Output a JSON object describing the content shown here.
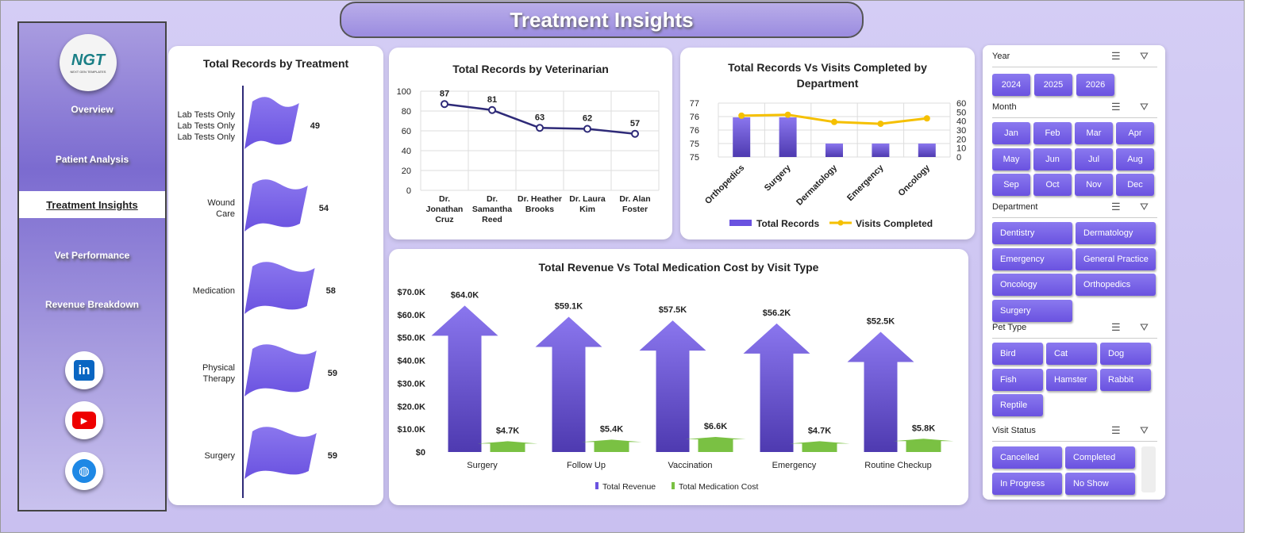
{
  "title": "Treatment Insights",
  "logo": {
    "text": "NGT",
    "subtitle": "NEXT GEN TEMPLATES"
  },
  "nav": [
    {
      "label": "Overview"
    },
    {
      "label": "Patient Analysis"
    },
    {
      "label": "Treatment Insights",
      "active": true
    },
    {
      "label": "Vet Performance"
    },
    {
      "label": "Revenue Breakdown"
    }
  ],
  "social": [
    {
      "icon": "linkedin-icon",
      "label": "in"
    },
    {
      "icon": "youtube-icon"
    },
    {
      "icon": "globe-icon"
    }
  ],
  "colors": {
    "primary": "#6a52e0",
    "line": "#f5c000",
    "green": "#7ac143",
    "navy": "#2e2a78"
  },
  "chart_data": [
    {
      "type": "bar",
      "title": "Total Records by Treatment",
      "categories": [
        "Lab Tests Only",
        "Wound Care",
        "Medication",
        "Physical Therapy",
        "Surgery"
      ],
      "values": [
        49,
        54,
        58,
        59,
        59
      ]
    },
    {
      "type": "line",
      "title": "Total Records by Veterinarian",
      "categories": [
        "Dr. Jonathan Cruz",
        "Dr. Samantha Reed",
        "Dr. Heather Brooks",
        "Dr. Laura Kim",
        "Dr. Alan Foster"
      ],
      "values": [
        87,
        81,
        63,
        62,
        57
      ],
      "ylim": [
        0,
        100
      ],
      "yticks": [
        "0",
        "20",
        "40",
        "60",
        "80",
        "100"
      ],
      "grid": true
    },
    {
      "type": "bar",
      "title": "Total Records Vs Visits Completed by Department",
      "categories": [
        "Orthopedics",
        "Surgery",
        "Dermatology",
        "Emergency",
        "Oncology"
      ],
      "series": [
        {
          "name": "Total Records",
          "values": [
            76,
            76,
            75,
            75,
            75
          ]
        },
        {
          "name": "Visits Completed",
          "values": [
            46,
            47,
            39,
            37,
            43
          ]
        }
      ],
      "yticks_left": [
        "75",
        "75",
        "76",
        "76",
        "77"
      ],
      "yticks_right": [
        "0",
        "10",
        "20",
        "30",
        "40",
        "50",
        "60"
      ],
      "legend": "bottom",
      "grid": true
    },
    {
      "type": "bar",
      "title": "Total Revenue Vs Total Medication Cost by Visit Type",
      "categories": [
        "Surgery",
        "Follow Up",
        "Vaccination",
        "Emergency",
        "Routine Checkup"
      ],
      "series": [
        {
          "name": "Total Revenue",
          "values": [
            64.0,
            59.1,
            57.5,
            56.2,
            52.5
          ],
          "labels": [
            "$64.0K",
            "$59.1K",
            "$57.5K",
            "$56.2K",
            "$52.5K"
          ]
        },
        {
          "name": "Total Medication Cost",
          "values": [
            4.7,
            5.4,
            6.6,
            4.7,
            5.8
          ],
          "labels": [
            "$4.7K",
            "$5.4K",
            "$6.6K",
            "$4.7K",
            "$5.8K"
          ]
        }
      ],
      "ylim": [
        0,
        70
      ],
      "yticks": [
        "$0",
        "$10.0K",
        "$20.0K",
        "$30.0K",
        "$40.0K",
        "$50.0K",
        "$60.0K",
        "$70.0K"
      ],
      "legend": "bottom"
    }
  ],
  "slicers": [
    {
      "title": "Year",
      "items": [
        "2024",
        "2025",
        "2026"
      ]
    },
    {
      "title": "Month",
      "items": [
        "Jan",
        "Feb",
        "Mar",
        "Apr",
        "May",
        "Jun",
        "Jul",
        "Aug",
        "Sep",
        "Oct",
        "Nov",
        "Dec"
      ]
    },
    {
      "title": "Department",
      "items": [
        "Dentistry",
        "Dermatology",
        "Emergency",
        "General Practice",
        "Oncology",
        "Orthopedics",
        "Surgery"
      ]
    },
    {
      "title": "Pet Type",
      "items": [
        "Bird",
        "Cat",
        "Dog",
        "Fish",
        "Hamster",
        "Rabbit",
        "Reptile"
      ]
    },
    {
      "title": "Visit Status",
      "items": [
        "Cancelled",
        "Completed",
        "In Progress",
        "No Show"
      ]
    }
  ]
}
